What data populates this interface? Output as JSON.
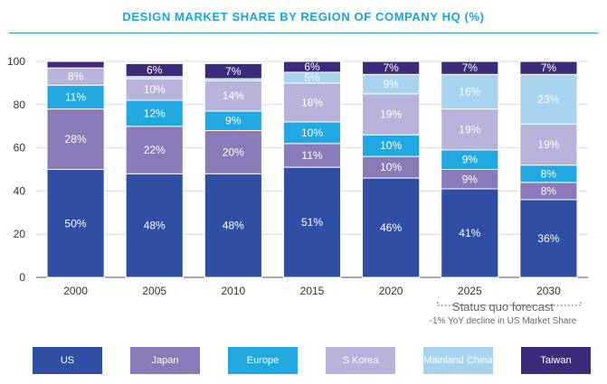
{
  "chart_data": {
    "type": "bar",
    "stacked": true,
    "title": "DESIGN MARKET SHARE BY REGION OF COMPANY HQ (%)",
    "categories": [
      "2000",
      "2005",
      "2010",
      "2015",
      "2020",
      "2025",
      "2030"
    ],
    "ylim": [
      0,
      100
    ],
    "yticks": [
      0,
      20,
      40,
      60,
      80,
      100
    ],
    "series": [
      {
        "name": "US",
        "color": "#2e4fa3",
        "values": [
          50,
          48,
          48,
          51,
          46,
          41,
          36
        ],
        "labels": [
          "50%",
          "48%",
          "48%",
          "51%",
          "46%",
          "41%",
          "36%"
        ]
      },
      {
        "name": "Japan",
        "color": "#8a7bb8",
        "values": [
          28,
          22,
          20,
          11,
          10,
          9,
          8
        ],
        "labels": [
          "28%",
          "22%",
          "20%",
          "11%",
          "10%",
          "9%",
          "8%"
        ]
      },
      {
        "name": "Europe",
        "color": "#22a8e1",
        "values": [
          11,
          12,
          9,
          10,
          10,
          9,
          8
        ],
        "labels": [
          "11%",
          "12%",
          "9%",
          "10%",
          "10%",
          "9%",
          "8%"
        ]
      },
      {
        "name": "S Korea",
        "color": "#b8b3da",
        "values": [
          8,
          10,
          14,
          18,
          19,
          19,
          19
        ],
        "labels": [
          "8%",
          "10%",
          "14%",
          "18%",
          "19%",
          "19%",
          "19%"
        ]
      },
      {
        "name": "Mainland China",
        "color": "#a7d3ef",
        "values": [
          0,
          1,
          1,
          5,
          9,
          16,
          23
        ],
        "labels": [
          "",
          "",
          "",
          "5%",
          "9%",
          "16%",
          "23%"
        ]
      },
      {
        "name": "Taiwan",
        "color": "#3d2a7a",
        "values": [
          3,
          6,
          7,
          6,
          7,
          7,
          7
        ],
        "labels": [
          "",
          "6%",
          "7%",
          "6%",
          "7%",
          "7%",
          "7%"
        ]
      }
    ],
    "legend_position": "bottom",
    "forecast": {
      "label": "Status quo forecast",
      "note": "-1% YoY decline in US Market Share",
      "categories": [
        "2025",
        "2030"
      ]
    },
    "grid": true
  }
}
